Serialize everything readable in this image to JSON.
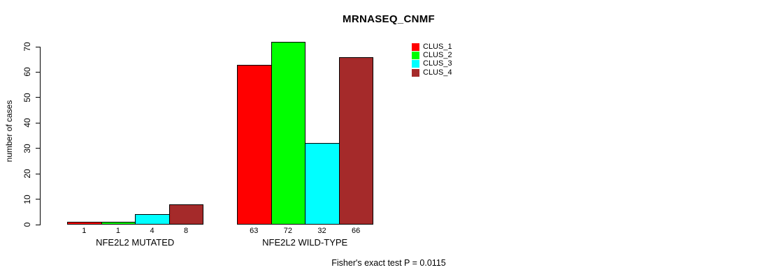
{
  "chart_data": {
    "type": "bar",
    "title": "MRNASEQ_CNMF",
    "ylabel": "number of cases",
    "ylim": [
      0,
      70
    ],
    "yticks": [
      0,
      10,
      20,
      30,
      40,
      50,
      60,
      70
    ],
    "grid": false,
    "legend_position": "top-right-inside",
    "categories": [
      "NFE2L2 MUTATED",
      "NFE2L2 WILD-TYPE"
    ],
    "series": [
      {
        "name": "CLUS_1",
        "color": "#FF0000",
        "values": [
          1,
          63
        ]
      },
      {
        "name": "CLUS_2",
        "color": "#00FF00",
        "values": [
          1,
          72
        ]
      },
      {
        "name": "CLUS_3",
        "color": "#00FFFF",
        "values": [
          4,
          32
        ]
      },
      {
        "name": "CLUS_4",
        "color": "#A52A2A",
        "values": [
          8,
          66
        ]
      }
    ],
    "bar_value_labels": [
      [
        1,
        1,
        4,
        8
      ],
      [
        63,
        72,
        32,
        66
      ]
    ],
    "annotation": "Fisher's exact test P = 0.0115"
  }
}
